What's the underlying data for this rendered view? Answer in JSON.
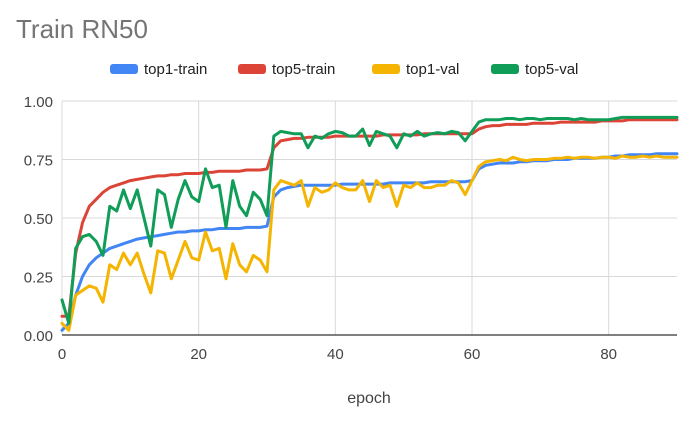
{
  "chart_data": {
    "type": "line",
    "title": "Train RN50",
    "xlabel": "epoch",
    "ylabel": "",
    "xlim": [
      0,
      90
    ],
    "ylim": [
      0,
      1
    ],
    "x_ticks": [
      "0",
      "20",
      "40",
      "60",
      "80"
    ],
    "y_ticks": [
      "0.00",
      "0.25",
      "0.50",
      "0.75",
      "1.00"
    ],
    "grid": true,
    "legend_position": "top",
    "series": [
      {
        "name": "top1-train",
        "color": "#4285f4",
        "x": [
          0,
          1,
          2,
          3,
          4,
          5,
          6,
          7,
          8,
          9,
          10,
          11,
          12,
          13,
          14,
          15,
          16,
          17,
          18,
          19,
          20,
          21,
          22,
          23,
          24,
          25,
          26,
          27,
          28,
          29,
          30,
          31,
          32,
          33,
          34,
          35,
          36,
          37,
          38,
          39,
          40,
          41,
          42,
          43,
          44,
          45,
          46,
          47,
          48,
          49,
          50,
          51,
          52,
          53,
          54,
          55,
          56,
          57,
          58,
          59,
          60,
          61,
          62,
          63,
          64,
          65,
          66,
          67,
          68,
          69,
          70,
          71,
          72,
          73,
          74,
          75,
          76,
          77,
          78,
          79,
          80,
          81,
          82,
          83,
          84,
          85,
          86,
          87,
          88,
          89,
          90
        ],
        "values": [
          0.02,
          0.05,
          0.17,
          0.25,
          0.3,
          0.33,
          0.35,
          0.37,
          0.38,
          0.39,
          0.4,
          0.41,
          0.415,
          0.42,
          0.425,
          0.43,
          0.435,
          0.44,
          0.44,
          0.445,
          0.445,
          0.45,
          0.45,
          0.455,
          0.455,
          0.455,
          0.455,
          0.46,
          0.46,
          0.46,
          0.465,
          0.59,
          0.62,
          0.63,
          0.635,
          0.64,
          0.64,
          0.64,
          0.64,
          0.64,
          0.64,
          0.645,
          0.645,
          0.645,
          0.645,
          0.645,
          0.645,
          0.645,
          0.65,
          0.65,
          0.65,
          0.65,
          0.65,
          0.65,
          0.655,
          0.655,
          0.655,
          0.655,
          0.655,
          0.655,
          0.66,
          0.71,
          0.725,
          0.73,
          0.735,
          0.735,
          0.735,
          0.74,
          0.74,
          0.745,
          0.745,
          0.745,
          0.75,
          0.75,
          0.75,
          0.755,
          0.755,
          0.755,
          0.755,
          0.76,
          0.76,
          0.765,
          0.765,
          0.77,
          0.77,
          0.77,
          0.77,
          0.775,
          0.775,
          0.775,
          0.775
        ]
      },
      {
        "name": "top5-train",
        "color": "#db4437",
        "x": [
          0,
          1,
          2,
          3,
          4,
          5,
          6,
          7,
          8,
          9,
          10,
          11,
          12,
          13,
          14,
          15,
          16,
          17,
          18,
          19,
          20,
          21,
          22,
          23,
          24,
          25,
          26,
          27,
          28,
          29,
          30,
          31,
          32,
          33,
          34,
          35,
          36,
          37,
          38,
          39,
          40,
          41,
          42,
          43,
          44,
          45,
          46,
          47,
          48,
          49,
          50,
          51,
          52,
          53,
          54,
          55,
          56,
          57,
          58,
          59,
          60,
          61,
          62,
          63,
          64,
          65,
          66,
          67,
          68,
          69,
          70,
          71,
          72,
          73,
          74,
          75,
          76,
          77,
          78,
          79,
          80,
          81,
          82,
          83,
          84,
          85,
          86,
          87,
          88,
          89,
          90
        ],
        "values": [
          0.08,
          0.08,
          0.35,
          0.48,
          0.55,
          0.58,
          0.61,
          0.63,
          0.64,
          0.65,
          0.66,
          0.665,
          0.67,
          0.675,
          0.68,
          0.68,
          0.685,
          0.685,
          0.69,
          0.69,
          0.69,
          0.695,
          0.695,
          0.7,
          0.7,
          0.7,
          0.7,
          0.705,
          0.705,
          0.705,
          0.71,
          0.8,
          0.83,
          0.835,
          0.84,
          0.84,
          0.845,
          0.845,
          0.845,
          0.845,
          0.85,
          0.85,
          0.85,
          0.85,
          0.85,
          0.85,
          0.85,
          0.855,
          0.855,
          0.855,
          0.855,
          0.855,
          0.855,
          0.86,
          0.86,
          0.86,
          0.86,
          0.86,
          0.86,
          0.86,
          0.86,
          0.88,
          0.89,
          0.895,
          0.895,
          0.9,
          0.9,
          0.9,
          0.9,
          0.905,
          0.905,
          0.905,
          0.905,
          0.91,
          0.91,
          0.91,
          0.91,
          0.91,
          0.91,
          0.915,
          0.915,
          0.915,
          0.915,
          0.92,
          0.92,
          0.92,
          0.92,
          0.92,
          0.92,
          0.92,
          0.92
        ]
      },
      {
        "name": "top1-val",
        "color": "#f4b400",
        "x": [
          0,
          1,
          2,
          3,
          4,
          5,
          6,
          7,
          8,
          9,
          10,
          11,
          12,
          13,
          14,
          15,
          16,
          17,
          18,
          19,
          20,
          21,
          22,
          23,
          24,
          25,
          26,
          27,
          28,
          29,
          30,
          31,
          32,
          33,
          34,
          35,
          36,
          37,
          38,
          39,
          40,
          41,
          42,
          43,
          44,
          45,
          46,
          47,
          48,
          49,
          50,
          51,
          52,
          53,
          54,
          55,
          56,
          57,
          58,
          59,
          60,
          61,
          62,
          63,
          64,
          65,
          66,
          67,
          68,
          69,
          70,
          71,
          72,
          73,
          74,
          75,
          76,
          77,
          78,
          79,
          80,
          81,
          82,
          83,
          84,
          85,
          86,
          87,
          88,
          89,
          90
        ],
        "values": [
          0.05,
          0.02,
          0.17,
          0.19,
          0.21,
          0.2,
          0.14,
          0.3,
          0.28,
          0.35,
          0.3,
          0.35,
          0.26,
          0.18,
          0.36,
          0.35,
          0.24,
          0.32,
          0.4,
          0.33,
          0.32,
          0.44,
          0.36,
          0.37,
          0.24,
          0.39,
          0.3,
          0.27,
          0.34,
          0.32,
          0.27,
          0.62,
          0.66,
          0.65,
          0.64,
          0.66,
          0.55,
          0.63,
          0.61,
          0.62,
          0.65,
          0.63,
          0.62,
          0.62,
          0.66,
          0.57,
          0.66,
          0.63,
          0.64,
          0.55,
          0.64,
          0.63,
          0.65,
          0.63,
          0.63,
          0.64,
          0.64,
          0.66,
          0.65,
          0.6,
          0.66,
          0.72,
          0.74,
          0.745,
          0.75,
          0.745,
          0.76,
          0.75,
          0.745,
          0.75,
          0.75,
          0.75,
          0.755,
          0.755,
          0.76,
          0.755,
          0.76,
          0.76,
          0.755,
          0.76,
          0.76,
          0.755,
          0.765,
          0.76,
          0.76,
          0.765,
          0.76,
          0.765,
          0.76,
          0.76,
          0.76
        ]
      },
      {
        "name": "top5-val",
        "color": "#0f9d58",
        "x": [
          0,
          1,
          2,
          3,
          4,
          5,
          6,
          7,
          8,
          9,
          10,
          11,
          12,
          13,
          14,
          15,
          16,
          17,
          18,
          19,
          20,
          21,
          22,
          23,
          24,
          25,
          26,
          27,
          28,
          29,
          30,
          31,
          32,
          33,
          34,
          35,
          36,
          37,
          38,
          39,
          40,
          41,
          42,
          43,
          44,
          45,
          46,
          47,
          48,
          49,
          50,
          51,
          52,
          53,
          54,
          55,
          56,
          57,
          58,
          59,
          60,
          61,
          62,
          63,
          64,
          65,
          66,
          67,
          68,
          69,
          70,
          71,
          72,
          73,
          74,
          75,
          76,
          77,
          78,
          79,
          80,
          81,
          82,
          83,
          84,
          85,
          86,
          87,
          88,
          89,
          90
        ],
        "values": [
          0.15,
          0.05,
          0.37,
          0.42,
          0.43,
          0.4,
          0.34,
          0.55,
          0.53,
          0.62,
          0.54,
          0.62,
          0.5,
          0.38,
          0.62,
          0.6,
          0.46,
          0.58,
          0.66,
          0.59,
          0.57,
          0.71,
          0.63,
          0.64,
          0.46,
          0.66,
          0.55,
          0.51,
          0.61,
          0.58,
          0.51,
          0.85,
          0.87,
          0.865,
          0.86,
          0.86,
          0.8,
          0.85,
          0.84,
          0.86,
          0.87,
          0.865,
          0.85,
          0.85,
          0.88,
          0.81,
          0.87,
          0.86,
          0.85,
          0.8,
          0.86,
          0.85,
          0.87,
          0.85,
          0.86,
          0.865,
          0.86,
          0.87,
          0.865,
          0.83,
          0.87,
          0.91,
          0.92,
          0.92,
          0.92,
          0.925,
          0.925,
          0.92,
          0.925,
          0.925,
          0.92,
          0.925,
          0.925,
          0.925,
          0.925,
          0.92,
          0.925,
          0.92,
          0.92,
          0.92,
          0.92,
          0.925,
          0.93,
          0.93,
          0.93,
          0.93,
          0.93,
          0.93,
          0.93,
          0.93,
          0.93
        ]
      }
    ]
  }
}
